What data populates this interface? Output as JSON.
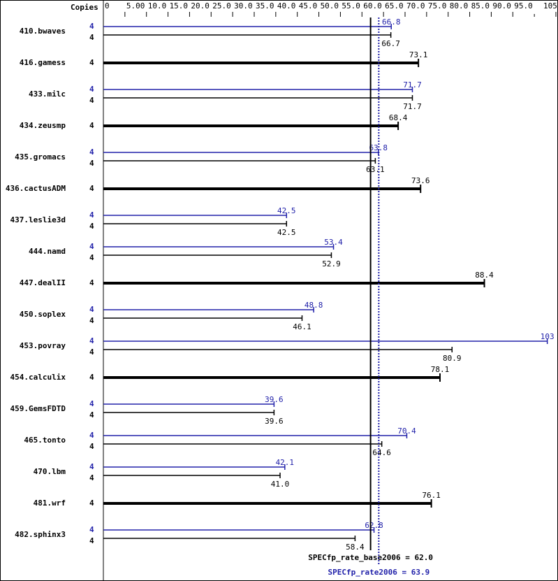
{
  "chart_data": {
    "type": "bar",
    "orientation": "horizontal",
    "copies_header": "Copies",
    "xlim": [
      0,
      105
    ],
    "ticks": [
      "0",
      "5.00",
      "10.0",
      "15.0",
      "20.0",
      "25.0",
      "30.0",
      "35.0",
      "40.0",
      "45.0",
      "50.0",
      "55.0",
      "60.0",
      "65.0",
      "70.0",
      "75.0",
      "80.0",
      "85.0",
      "90.0",
      "95.0",
      "105"
    ],
    "tick_values": [
      0,
      5,
      10,
      15,
      20,
      25,
      30,
      35,
      40,
      45,
      50,
      55,
      60,
      65,
      70,
      75,
      80,
      85,
      90,
      95,
      105
    ],
    "colors": {
      "peak": "#2222aa",
      "base": "#000000"
    },
    "benchmarks": [
      {
        "name": "410.bwaves",
        "copies_peak": "4",
        "copies_base": "4",
        "peak": 66.8,
        "base": 66.7
      },
      {
        "name": "416.gamess",
        "copies": "4",
        "value": 73.1
      },
      {
        "name": "433.milc",
        "copies_peak": "4",
        "copies_base": "4",
        "peak": 71.7,
        "base": 71.7
      },
      {
        "name": "434.zeusmp",
        "copies": "4",
        "value": 68.4
      },
      {
        "name": "435.gromacs",
        "copies_peak": "4",
        "copies_base": "4",
        "peak": 63.8,
        "base": 63.1
      },
      {
        "name": "436.cactusADM",
        "copies": "4",
        "value": 73.6
      },
      {
        "name": "437.leslie3d",
        "copies_peak": "4",
        "copies_base": "4",
        "peak": 42.5,
        "base": 42.5
      },
      {
        "name": "444.namd",
        "copies_peak": "4",
        "copies_base": "4",
        "peak": 53.4,
        "base": 52.9
      },
      {
        "name": "447.dealII",
        "copies": "4",
        "value": 88.4
      },
      {
        "name": "450.soplex",
        "copies_peak": "4",
        "copies_base": "4",
        "peak": 48.8,
        "base": 46.1
      },
      {
        "name": "453.povray",
        "copies_peak": "4",
        "copies_base": "4",
        "peak": 103,
        "base": 80.9
      },
      {
        "name": "454.calculix",
        "copies": "4",
        "value": 78.1
      },
      {
        "name": "459.GemsFDTD",
        "copies_peak": "4",
        "copies_base": "4",
        "peak": 39.6,
        "base": 39.6
      },
      {
        "name": "465.tonto",
        "copies_peak": "4",
        "copies_base": "4",
        "peak": 70.4,
        "base": 64.6
      },
      {
        "name": "470.lbm",
        "copies_peak": "4",
        "copies_base": "4",
        "peak": 42.1,
        "base": 41.0
      },
      {
        "name": "481.wrf",
        "copies": "4",
        "value": 76.1
      },
      {
        "name": "482.sphinx3",
        "copies_peak": "4",
        "copies_base": "4",
        "peak": 62.8,
        "base": 58.4
      }
    ],
    "base_mean": {
      "label": "SPECfp_rate_base2006 = 62.0",
      "value": 62.0
    },
    "peak_mean": {
      "label": "SPECfp_rate2006 = 63.9",
      "value": 63.9
    }
  }
}
